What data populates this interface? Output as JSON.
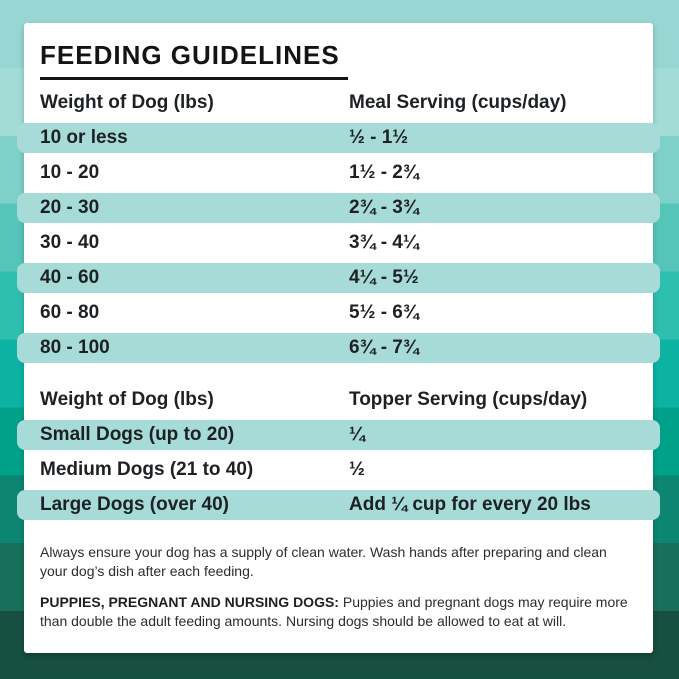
{
  "title": "FEEDING GUIDELINES",
  "meal_table": {
    "col1_header": "Weight of Dog (lbs)",
    "col2_header": "Meal Serving (cups/day)",
    "rows": [
      {
        "weight": "10 or less",
        "serving": "½ - 1½"
      },
      {
        "weight": "10 - 20",
        "serving": "1½ - 2¾"
      },
      {
        "weight": "20 - 30",
        "serving": "2¾ - 3¾"
      },
      {
        "weight": "30 - 40",
        "serving": "3¾ - 4¼"
      },
      {
        "weight": "40 - 60",
        "serving": "4¼ - 5½"
      },
      {
        "weight": "60 - 80",
        "serving": "5½ - 6¾"
      },
      {
        "weight": "80 - 100",
        "serving": "6¾ - 7¾"
      }
    ]
  },
  "topper_table": {
    "col1_header": "Weight of Dog (lbs)",
    "col2_header": "Topper Serving (cups/day)",
    "rows": [
      {
        "weight": "Small Dogs (up to 20)",
        "serving": "¼"
      },
      {
        "weight": "Medium Dogs (21 to 40)",
        "serving": "½"
      },
      {
        "weight": "Large Dogs (over 40)",
        "serving": "Add ¼ cup for every 20 lbs"
      }
    ]
  },
  "notes": {
    "water_note": "Always ensure your dog has a supply of clean water. Wash hands after preparing and clean your dog’s dish after each feeding.",
    "special_note_label": "PUPPIES, PREGNANT AND NURSING DOGS:",
    "special_note_text": "Puppies and pregnant dogs may require more than double the adult feeding amounts. Nursing dogs should be allowed to eat at will."
  },
  "colors": {
    "card_bg": "#ffffff",
    "row_highlight": "#a7dbd7",
    "text": "#1d2124",
    "title": "#141414",
    "background_bands": [
      "#97d6d2",
      "#a3dbd7",
      "#7ed0c9",
      "#55c5b9",
      "#2fbfb0",
      "#0cb3a2",
      "#01a189",
      "#0d8671",
      "#186f5b",
      "#174f40"
    ]
  }
}
